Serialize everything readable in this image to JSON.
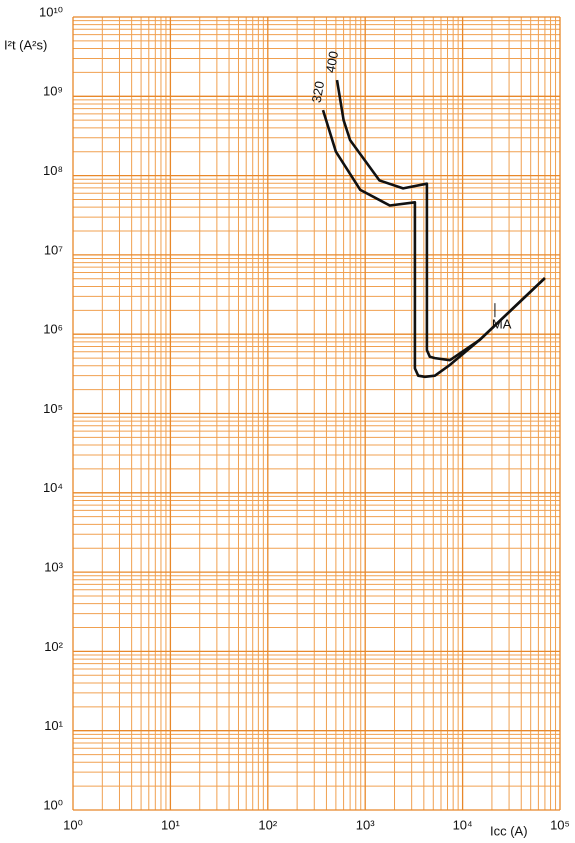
{
  "chart_data": {
    "type": "line",
    "y_label": "I²t (A²s)",
    "x_label": "Icc (A)",
    "log_x": true,
    "log_y": true,
    "grid": true,
    "grid_color": "#f0a050",
    "xlim": [
      1,
      100000
    ],
    "ylim": [
      1,
      10000000000
    ],
    "xticks": [
      {
        "value": 1,
        "label": "10⁰"
      },
      {
        "value": 10,
        "label": "10¹"
      },
      {
        "value": 100,
        "label": "10²"
      },
      {
        "value": 1000,
        "label": "10³"
      },
      {
        "value": 10000,
        "label": "10⁴"
      },
      {
        "value": 100000,
        "label": "10⁵"
      }
    ],
    "yticks": [
      {
        "value": 1,
        "label": "10⁰"
      },
      {
        "value": 10,
        "label": "10¹"
      },
      {
        "value": 100,
        "label": "10²"
      },
      {
        "value": 1000,
        "label": "10³"
      },
      {
        "value": 10000,
        "label": "10⁴"
      },
      {
        "value": 100000,
        "label": "10⁵"
      },
      {
        "value": 1000000,
        "label": "10⁶"
      },
      {
        "value": 10000000,
        "label": "10⁷"
      },
      {
        "value": 100000000,
        "label": "10⁸"
      },
      {
        "value": 1000000000,
        "label": "10⁹"
      },
      {
        "value": 10000000000,
        "label": "10¹⁰"
      }
    ],
    "series": [
      {
        "name": "320",
        "color": "#111111",
        "x": [
          369,
          500,
          890,
          1790,
          3240,
          3240,
          3500,
          4100,
          5200,
          7400,
          15000,
          70000
        ],
        "values": [
          670000000,
          200000000,
          66000000,
          42000000,
          46000000,
          370000,
          300000,
          290000,
          300000,
          410000,
          850000,
          5100000
        ]
      },
      {
        "name": "400",
        "color": "#111111",
        "x": [
          513,
          600,
          700,
          1400,
          2450,
          4300,
          4300,
          4600,
          5200,
          7400,
          15000,
          70000
        ],
        "values": [
          1600000000,
          500000000,
          280000000,
          87000000,
          69000000,
          79000000,
          630000,
          520000,
          500000,
          470000,
          850000,
          5100000
        ]
      }
    ],
    "annotations": [
      {
        "text": "MA",
        "x": 20000,
        "y": 1300000
      }
    ]
  }
}
